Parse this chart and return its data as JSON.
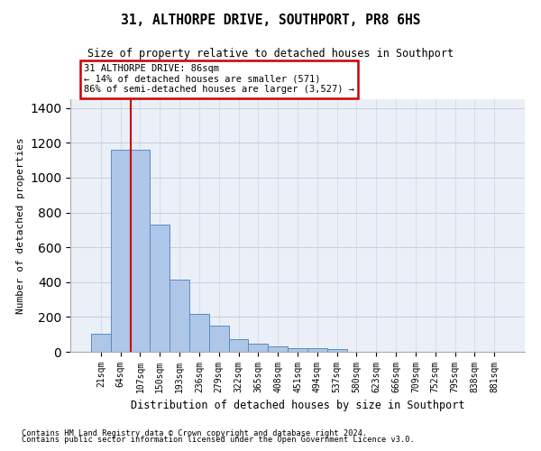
{
  "title": "31, ALTHORPE DRIVE, SOUTHPORT, PR8 6HS",
  "subtitle": "Size of property relative to detached houses in Southport",
  "xlabel": "Distribution of detached houses by size in Southport",
  "ylabel": "Number of detached properties",
  "categories": [
    "21sqm",
    "64sqm",
    "107sqm",
    "150sqm",
    "193sqm",
    "236sqm",
    "279sqm",
    "322sqm",
    "365sqm",
    "408sqm",
    "451sqm",
    "494sqm",
    "537sqm",
    "580sqm",
    "623sqm",
    "666sqm",
    "709sqm",
    "752sqm",
    "795sqm",
    "838sqm",
    "881sqm"
  ],
  "bar_values": [
    105,
    1160,
    1160,
    730,
    415,
    215,
    150,
    70,
    48,
    30,
    20,
    20,
    15,
    0,
    0,
    0,
    0,
    0,
    0,
    0,
    0
  ],
  "bar_color": "#aec6e8",
  "bar_edgecolor": "#5a8cbf",
  "vline_color": "#cc0000",
  "vline_pos": 1.5,
  "annotation_text": "31 ALTHORPE DRIVE: 86sqm\n← 14% of detached houses are smaller (571)\n86% of semi-detached houses are larger (3,527) →",
  "annotation_box_edgecolor": "#cc0000",
  "ylim": [
    0,
    1450
  ],
  "yticks": [
    0,
    200,
    400,
    600,
    800,
    1000,
    1200,
    1400
  ],
  "footer1": "Contains HM Land Registry data © Crown copyright and database right 2024.",
  "footer2": "Contains public sector information licensed under the Open Government Licence v3.0.",
  "plot_bg_color": "#eaeff8"
}
